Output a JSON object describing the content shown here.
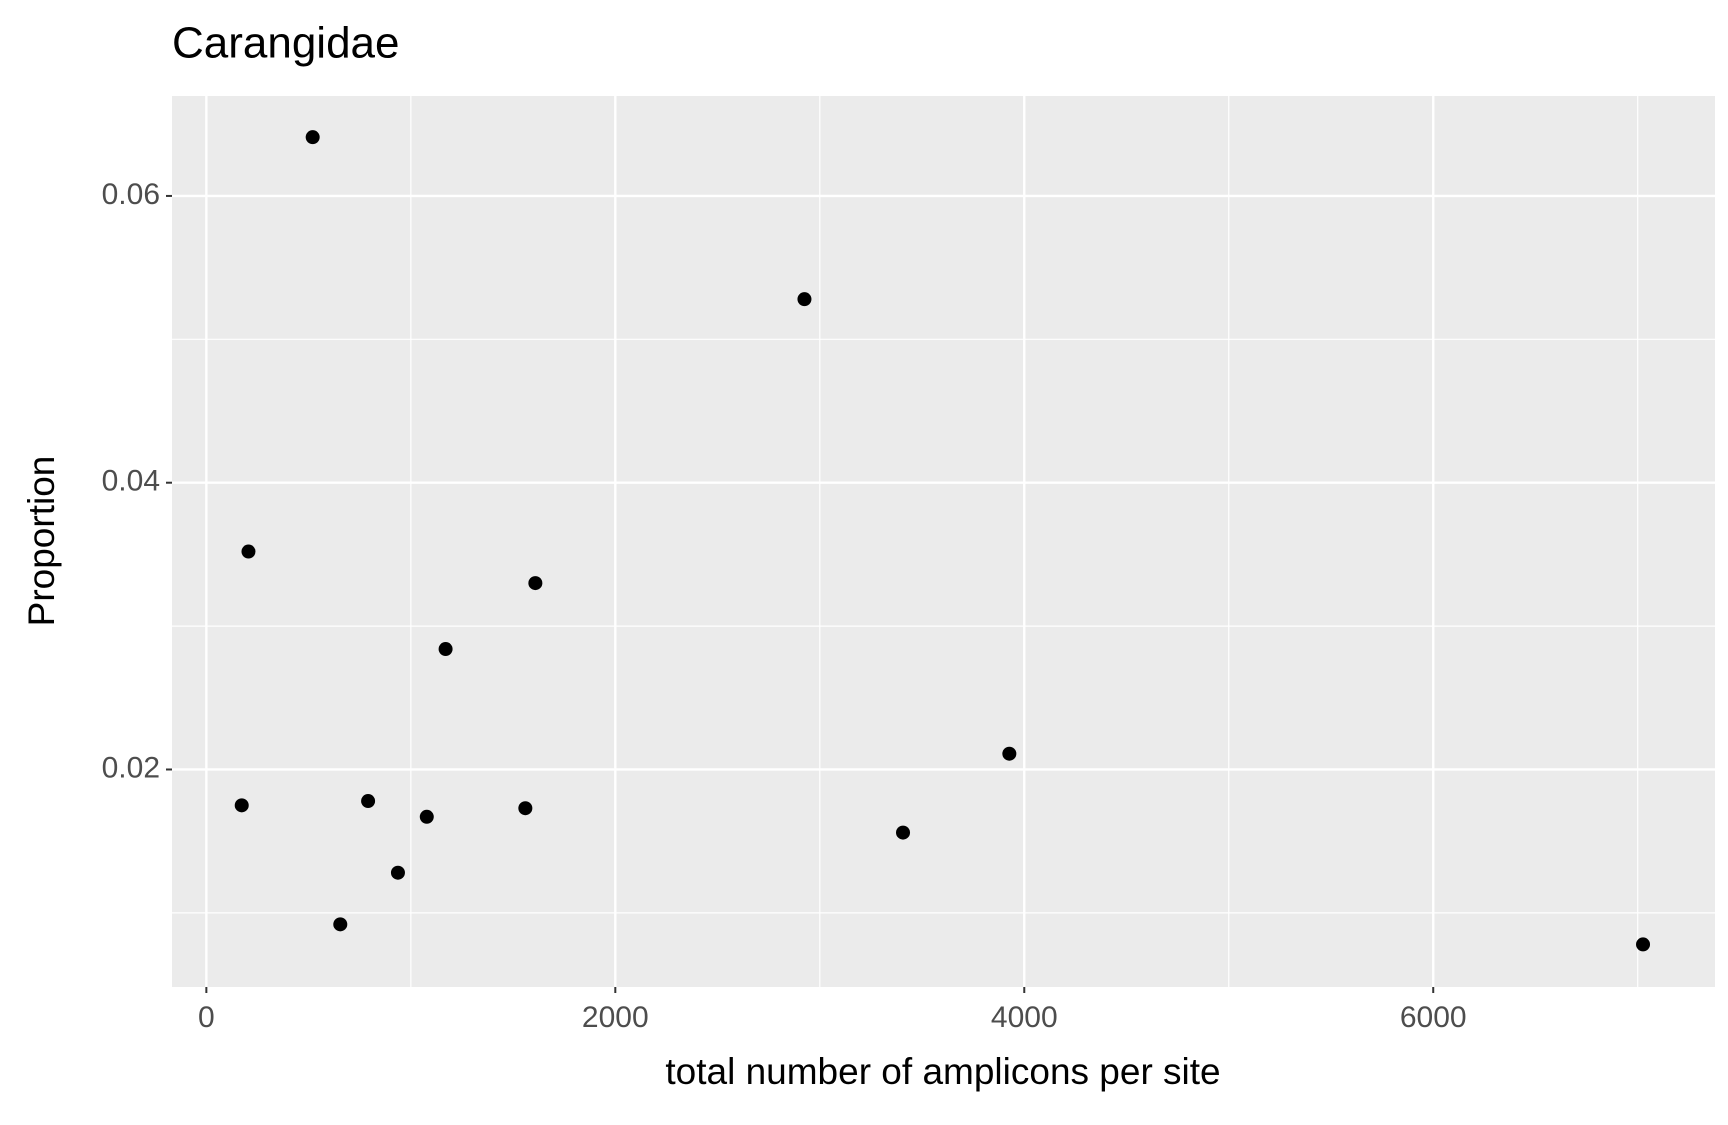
{
  "chart_data": {
    "type": "scatter",
    "title": "Carangidae",
    "x_label": "total number of amplicons per site",
    "y_label": "Proportion",
    "series": [
      {
        "color": "#000000",
        "x": [
          520,
          2925,
          206,
          1609,
          1170,
          3927,
          173,
          791,
          1078,
          1560,
          937,
          3407,
          655,
          7026
        ],
        "values": [
          0.0641,
          0.0528,
          0.0352,
          0.033,
          0.0284,
          0.0211,
          0.0175,
          0.0178,
          0.0167,
          0.0173,
          0.0128,
          0.0156,
          0.0092,
          0.0078
        ]
      }
    ],
    "xlim": [
      -168,
      7378
    ],
    "ylim": [
      0.00483,
      0.06697
    ],
    "xticks": [
      0,
      2000,
      4000,
      6000
    ],
    "yticks": [
      0.02,
      0.04,
      0.06
    ],
    "xminor": [
      1000,
      3000,
      5000,
      7000
    ],
    "yminor": [
      0.01,
      0.03,
      0.05
    ],
    "grid": true,
    "panel_color": "#ebebeb"
  }
}
